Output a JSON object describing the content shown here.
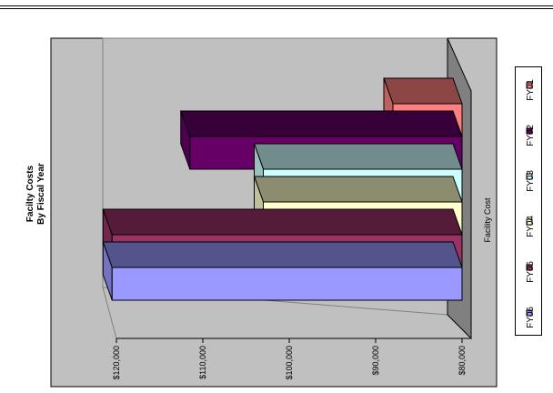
{
  "chart_data": {
    "type": "bar",
    "orientation": "horizontal-3d",
    "rotated": "90deg counter-clockwise",
    "title": [
      "Facilty Costs",
      "By Fiscal Year"
    ],
    "series_axis_label": "Facility Cost",
    "ylim": [
      80000,
      120000
    ],
    "tick_labels": [
      "$80,000",
      "$90,000",
      "$100,000",
      "$110,000",
      "$120,000"
    ],
    "tick_values": [
      80000,
      90000,
      100000,
      110000,
      120000
    ],
    "grid": false,
    "legend_position": "right",
    "series": [
      {
        "name": "FY01",
        "value": 88000,
        "color": "#ff8080"
      },
      {
        "name": "FY02",
        "value": 111500,
        "color": "#660066"
      },
      {
        "name": "FY03",
        "value": 103000,
        "color": "#ccffff"
      },
      {
        "name": "FY04",
        "value": 103000,
        "color": "#ffffcc"
      },
      {
        "name": "FY05",
        "value": 120500,
        "color": "#993366"
      },
      {
        "name": "FY06",
        "value": 120500,
        "color": "#9999ff"
      }
    ],
    "colors": {
      "plot_wall": "#c0c0c0",
      "floor": "#808080",
      "background": "#ffffff"
    }
  }
}
